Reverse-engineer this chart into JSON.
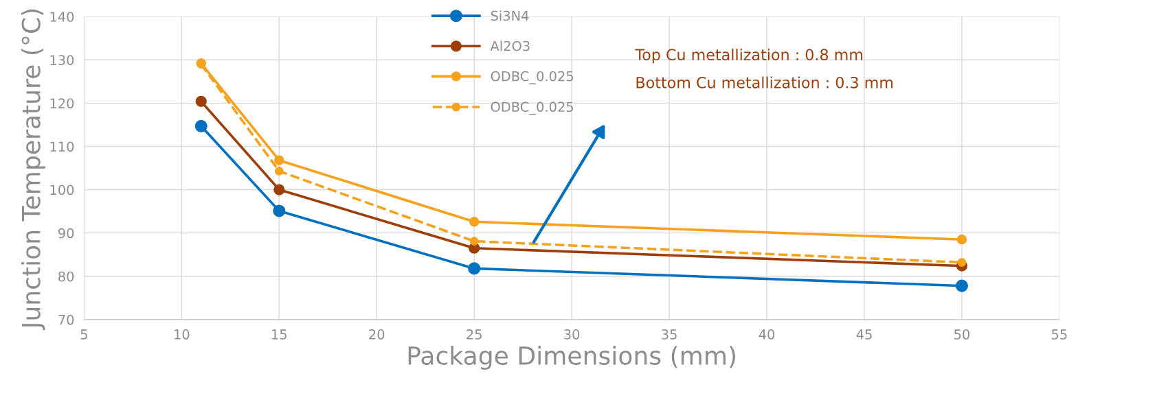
{
  "chart_data": {
    "type": "line",
    "xlabel": "Package Dimensions (mm)",
    "ylabel": "Junction Temperature (°C)",
    "x": [
      11,
      15,
      25,
      50
    ],
    "series": [
      {
        "name": "Si3N4",
        "color": "#0070c0",
        "values": [
          114.7,
          95.1,
          81.8,
          77.8
        ]
      },
      {
        "name": "Al2O3",
        "color": "#9e3f0b",
        "values": [
          120.4,
          100.0,
          86.5,
          82.4
        ]
      },
      {
        "name": "ODBC_0.025",
        "color": "#f5a21f",
        "values": [
          129.2,
          106.8,
          92.6,
          88.5
        ]
      },
      {
        "name": "ODBC_0.025",
        "color": "#f5a21f",
        "values": [
          129.0,
          104.3,
          88.1,
          83.2
        ],
        "line_style": "dashed"
      }
    ],
    "xlim": [
      5,
      55
    ],
    "xticks": [
      5,
      10,
      15,
      20,
      25,
      30,
      35,
      40,
      45,
      50,
      55
    ],
    "ylim": [
      70,
      140
    ],
    "yticks": [
      70,
      80,
      90,
      100,
      110,
      120,
      130,
      140
    ],
    "grid": true,
    "legend": "top",
    "marker": "circle",
    "line_style": "solid",
    "annotations": [
      "Top Cu metallization : 0.8 mm",
      "Bottom Cu metallization : 0.3 mm"
    ]
  }
}
